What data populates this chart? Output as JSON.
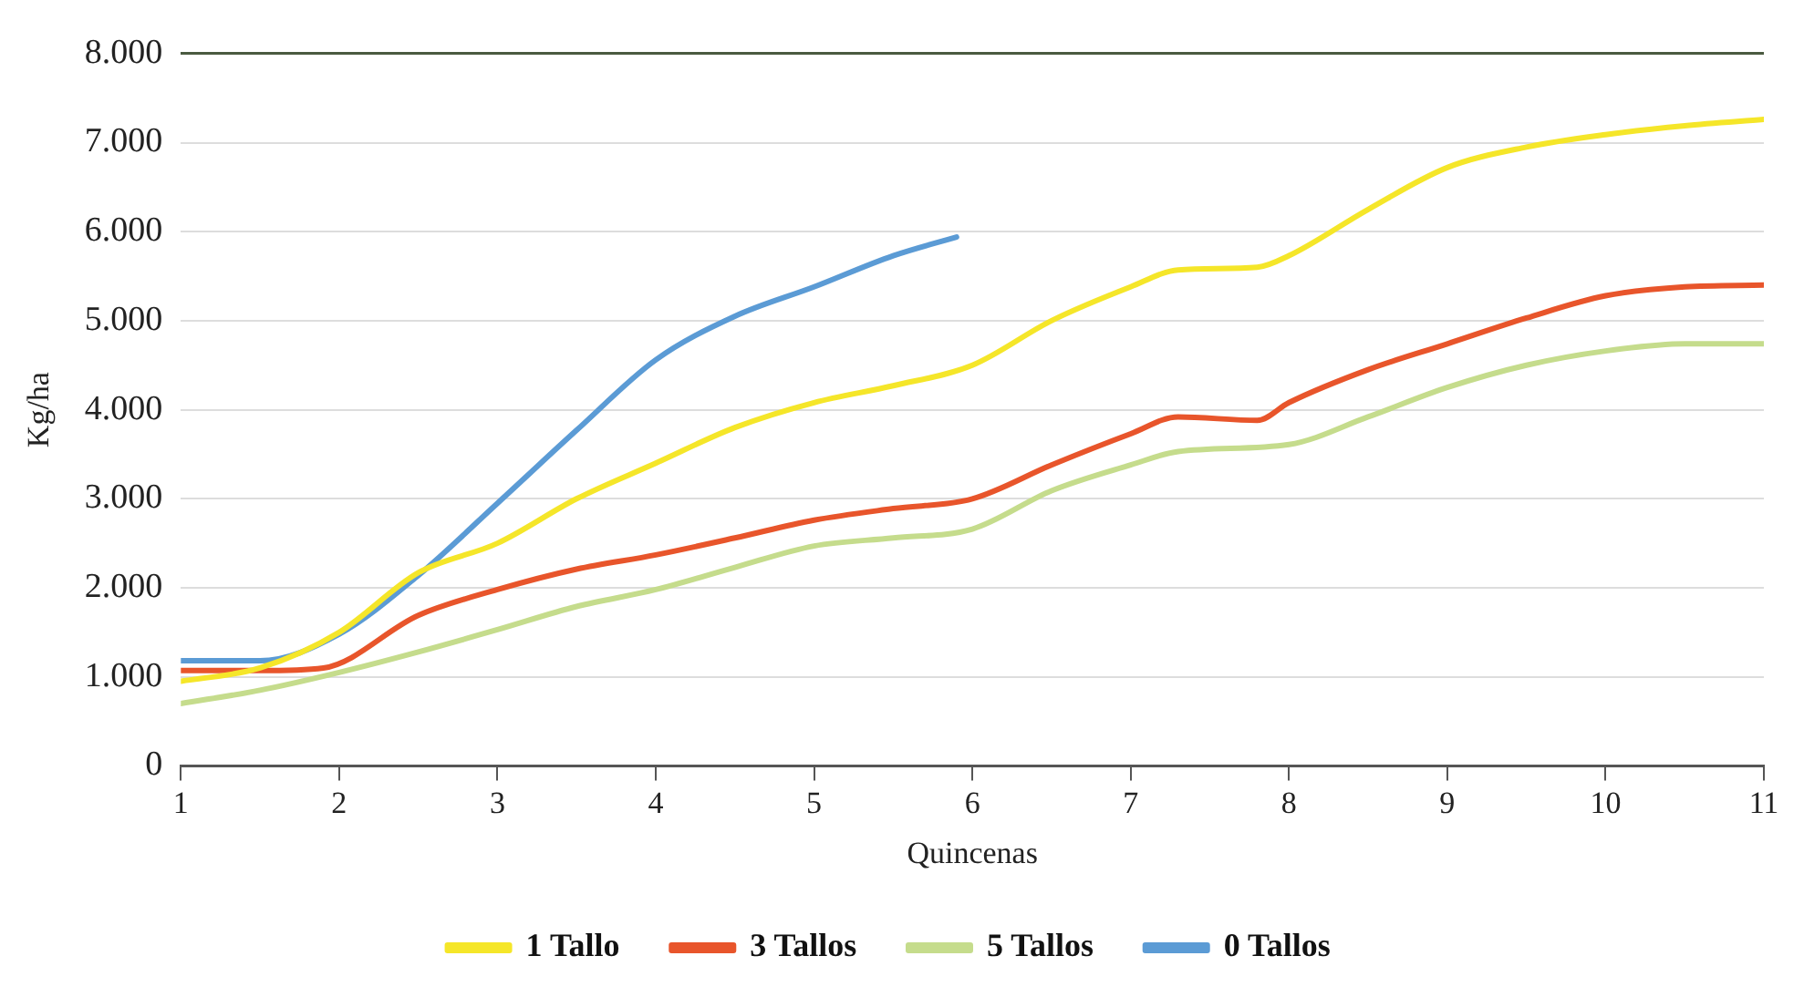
{
  "chart_data": {
    "type": "line",
    "xlabel": "Quincenas",
    "ylabel": "Kg/ha",
    "xlim": [
      1,
      11
    ],
    "xticks": [
      1,
      2,
      3,
      4,
      5,
      6,
      7,
      8,
      9,
      10,
      11
    ],
    "ylim": [
      0,
      8000
    ],
    "yticks": [
      0,
      {
        "value": 1000,
        "label": "1.000"
      },
      {
        "value": 2000,
        "label": "2.000"
      },
      {
        "value": 3000,
        "label": "3.000"
      },
      {
        "value": 4000,
        "label": "4.000"
      },
      {
        "value": 5000,
        "label": "5.000"
      },
      {
        "value": 6000,
        "label": "6.000"
      },
      {
        "value": 7000,
        "label": "7.000"
      },
      {
        "value": 8000,
        "label": "8.000"
      }
    ],
    "grid": "y",
    "legend": "bottom",
    "marker": "none",
    "line_style": "solid",
    "series": [
      {
        "name": "1 Tallo",
        "color": "#f5e629",
        "x": [
          1,
          1.5,
          2,
          2.5,
          3,
          3.5,
          4,
          4.5,
          5,
          5.5,
          6,
          6.5,
          7,
          7.3,
          7.8,
          8,
          8.5,
          9,
          9.5,
          10,
          10.5,
          11
        ],
        "values": [
          950,
          1100,
          1500,
          2170,
          2500,
          3000,
          3400,
          3800,
          4080,
          4270,
          4500,
          5000,
          5380,
          5570,
          5600,
          5730,
          6250,
          6720,
          6950,
          7090,
          7190,
          7260
        ]
      },
      {
        "name": "3 Tallos",
        "color": "#e8552b",
        "x": [
          1,
          1.5,
          1.9,
          2.5,
          3,
          3.5,
          4,
          4.5,
          5,
          5.5,
          6,
          6.5,
          7,
          7.3,
          7.8,
          8,
          8.5,
          9,
          9.5,
          10,
          10.5,
          11
        ],
        "values": [
          1070,
          1070,
          1100,
          1690,
          1980,
          2210,
          2370,
          2560,
          2760,
          2890,
          3000,
          3380,
          3730,
          3920,
          3880,
          4080,
          4450,
          4740,
          5030,
          5280,
          5380,
          5400
        ]
      },
      {
        "name": "5 Tallos",
        "color": "#c5dc8c",
        "x": [
          1,
          1.5,
          2,
          2.5,
          3,
          3.5,
          4,
          4.5,
          5,
          5.5,
          6,
          6.5,
          7,
          7.3,
          8,
          8.5,
          9,
          9.5,
          10,
          10.5,
          11
        ],
        "values": [
          700,
          850,
          1050,
          1280,
          1530,
          1790,
          1980,
          2230,
          2470,
          2560,
          2660,
          3090,
          3380,
          3530,
          3610,
          3920,
          4250,
          4500,
          4660,
          4740,
          4740
        ]
      },
      {
        "name": "0 Tallos",
        "color": "#5b9bd5",
        "x": [
          1,
          1.5,
          2,
          2.5,
          3,
          3.5,
          4,
          4.5,
          5,
          5.5,
          5.9
        ],
        "values": [
          1180,
          1180,
          1480,
          2140,
          2950,
          3770,
          4560,
          5050,
          5380,
          5730,
          5940
        ]
      }
    ]
  }
}
